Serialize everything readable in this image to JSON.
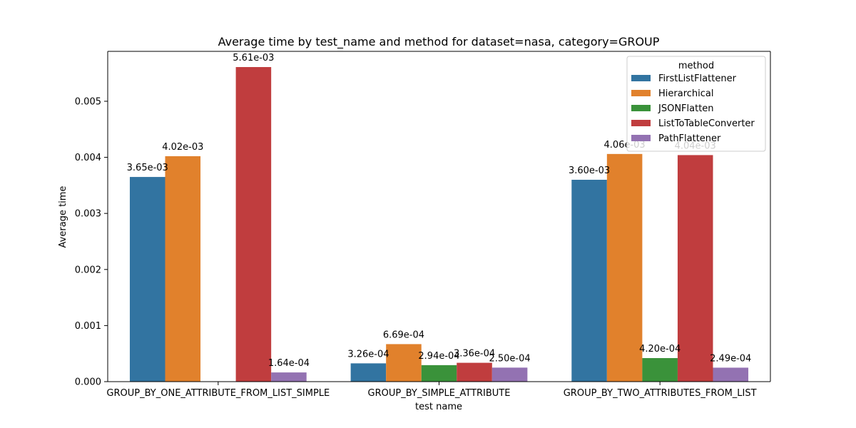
{
  "chart_data": {
    "type": "bar",
    "title": "Average time by test_name and method for dataset=nasa, category=GROUP",
    "xlabel": "test name",
    "ylabel": "Average time",
    "ylim": [
      0,
      0.00589
    ],
    "yticks": [
      0.0,
      0.001,
      0.002,
      0.003,
      0.004,
      0.005
    ],
    "ytick_labels": [
      "0.000",
      "0.001",
      "0.002",
      "0.003",
      "0.004",
      "0.005"
    ],
    "grid": false,
    "legend": {
      "title": "method",
      "placement": "top-right"
    },
    "categories": [
      "GROUP_BY_ONE_ATTRIBUTE_FROM_LIST_SIMPLE",
      "GROUP_BY_SIMPLE_ATTRIBUTE",
      "GROUP_BY_TWO_ATTRIBUTES_FROM_LIST"
    ],
    "series": [
      {
        "name": "FirstListFlattener",
        "color": "#3274a1",
        "values": [
          0.00365,
          0.000326,
          0.0036
        ],
        "labels": [
          "3.65e-03",
          "3.26e-04",
          "3.60e-03"
        ]
      },
      {
        "name": "Hierarchical",
        "color": "#e1812c",
        "values": [
          0.00402,
          0.000669,
          0.00406
        ],
        "labels": [
          "4.02e-03",
          "6.69e-04",
          "4.06e-03"
        ]
      },
      {
        "name": "JSONFlatten",
        "color": "#3a923a",
        "values": [
          null,
          0.000294,
          0.00042
        ],
        "labels": [
          null,
          "2.94e-04",
          "4.20e-04"
        ]
      },
      {
        "name": "ListToTableConverter",
        "color": "#c03d3e",
        "values": [
          0.00561,
          0.000336,
          0.00404
        ],
        "labels": [
          "5.61e-03",
          "3.36e-04",
          "4.04e-03"
        ]
      },
      {
        "name": "PathFlattener",
        "color": "#9372b2",
        "values": [
          0.000164,
          0.00025,
          0.000249
        ],
        "labels": [
          "1.64e-04",
          "2.50e-04",
          "2.49e-04"
        ]
      }
    ]
  }
}
